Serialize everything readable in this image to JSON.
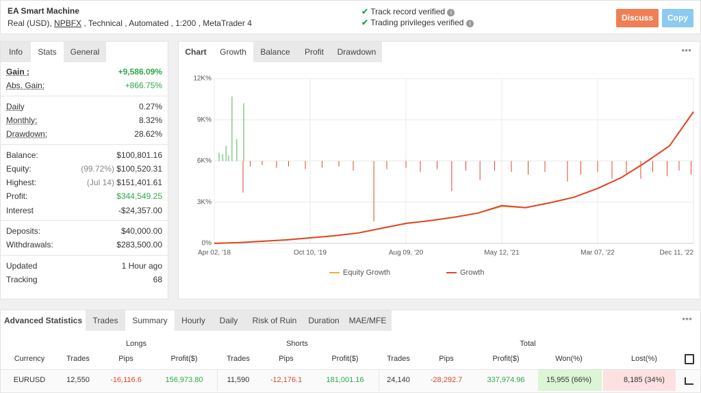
{
  "header": {
    "title": "EA Smart Machine",
    "subtitle_pre": "Real (USD),",
    "broker": "NPBFX",
    "subtitle_post": ", Technical , Automated , 1:200 , MetaTrader 4",
    "verified": [
      "Track record verified",
      "Trading privileges verified"
    ],
    "buttons": [
      "Discuss",
      "Copy"
    ]
  },
  "info_tabs": {
    "tabs": [
      "Info",
      "Stats",
      "General"
    ],
    "active": 1
  },
  "stats": {
    "groups": [
      [
        {
          "label": "Gain :",
          "value": "+9,586.09%",
          "color": "#2ba84a",
          "bold": true
        },
        {
          "label": "Abs. Gain:",
          "value": "+866.75%",
          "color": "#2ba84a"
        }
      ],
      [
        {
          "label": "Daily",
          "value": "0.27%"
        },
        {
          "label": "Monthly:",
          "value": "8.32%"
        },
        {
          "label": "Drawdown:",
          "value": "28.62%"
        }
      ],
      [
        {
          "label": "Balance:",
          "value": "$100,801.16"
        },
        {
          "label": "Equity:",
          "note": "(99.72%)",
          "value": "$100,520.31"
        },
        {
          "label": "Highest:",
          "note": "(Jul 14)",
          "value": "$151,401.61"
        },
        {
          "label": "Profit:",
          "value": "$344,549.25",
          "color": "#2ba84a"
        },
        {
          "label": "Interest",
          "value": "-$24,357.00"
        }
      ],
      [
        {
          "label": "Deposits:",
          "value": "$40,000.00"
        },
        {
          "label": "Withdrawals:",
          "value": "$283,500.00"
        }
      ],
      [
        {
          "label": "Updated",
          "value": "1 Hour ago"
        },
        {
          "label": "Tracking",
          "value": "68"
        }
      ]
    ]
  },
  "chart_tabs": {
    "tabs": [
      "Chart",
      "Growth",
      "Balance",
      "Profit",
      "Drawdown"
    ],
    "active": 1
  },
  "chart_data": {
    "type": "line",
    "x": [
      "Apr 02, '18",
      null,
      null,
      null,
      "Oct 10, '19",
      null,
      null,
      null,
      "Aug 09, '20",
      null,
      null,
      null,
      "May 12, '21",
      null,
      null,
      null,
      "Mar 07, '22",
      null,
      null,
      null,
      "Dec 11, '22"
    ],
    "series": [
      {
        "name": "Equity Growth",
        "color": "#f0b030",
        "values": [
          0,
          50,
          150,
          250,
          400,
          550,
          750,
          1100,
          1450,
          1650,
          1900,
          2200,
          2700,
          2600,
          2950,
          3350,
          4000,
          4800,
          5900,
          7100,
          9550
        ]
      },
      {
        "name": "Growth",
        "color": "#e0462a",
        "values": [
          0,
          50,
          150,
          250,
          400,
          550,
          750,
          1100,
          1450,
          1650,
          1900,
          2200,
          2750,
          2600,
          2950,
          3350,
          4000,
          4800,
          5900,
          7100,
          9586.09
        ]
      }
    ],
    "spikes": {
      "base": 6000,
      "up_color": "#4caf50",
      "down_color": "#e0462a",
      "x": [
        0.2,
        0.35,
        0.49,
        0.6,
        0.74,
        0.94,
        1.23,
        1.2,
        1.5,
        2.0,
        2.6,
        3.1,
        3.8,
        4.5,
        5.2,
        5.8,
        6.66,
        7.2,
        8.0,
        8.6,
        9.3,
        9.91,
        10.5,
        11.09,
        11.7,
        12.4,
        13.1,
        13.8,
        14.74,
        15.3,
        16.0,
        16.6,
        17.2,
        17.8,
        18.3,
        18.9,
        19.4,
        19.9
      ],
      "values": [
        6600,
        6500,
        7100,
        6400,
        10700,
        7600,
        10200,
        3700,
        5600,
        5700,
        5500,
        5600,
        5400,
        5500,
        5600,
        5300,
        1600,
        5400,
        5500,
        5200,
        5400,
        3800,
        5300,
        4600,
        5300,
        5200,
        5000,
        5200,
        4500,
        5000,
        5200,
        4700,
        5100,
        4700,
        5200,
        4900,
        5300,
        5000
      ]
    },
    "ylim": [
      0,
      12000
    ],
    "yticks": [
      {
        "value": 0,
        "label": "0%"
      },
      {
        "value": 3000,
        "label": "3K%"
      },
      {
        "value": 6000,
        "label": "6K%"
      },
      {
        "value": 9000,
        "label": "9K%"
      },
      {
        "value": 12000,
        "label": "12K%"
      }
    ],
    "grid": true
  },
  "advanced": {
    "title": "Advanced Statistics",
    "tabs": [
      "Trades",
      "Summary",
      "Hourly",
      "Daily",
      "Risk of Ruin",
      "Duration",
      "MAE/MFE"
    ],
    "active": 1,
    "groups": [
      "Longs",
      "Shorts",
      "Total"
    ],
    "columns": [
      "Currency",
      "Trades",
      "Pips",
      "Profit($)",
      "Trades",
      "Pips",
      "Profit($)",
      "Trades",
      "Pips",
      "Profit($)",
      "Won(%)",
      "Lost(%)"
    ],
    "rows": [
      [
        "EURUSD",
        "12,550",
        "-16,116.6",
        "156,973.80",
        "11,590",
        "-12,176.1",
        "181,001.16",
        "24,140",
        "-28,292.7",
        "337,974.96",
        "15,955 (66%)",
        "8,185 (34%)"
      ]
    ]
  }
}
